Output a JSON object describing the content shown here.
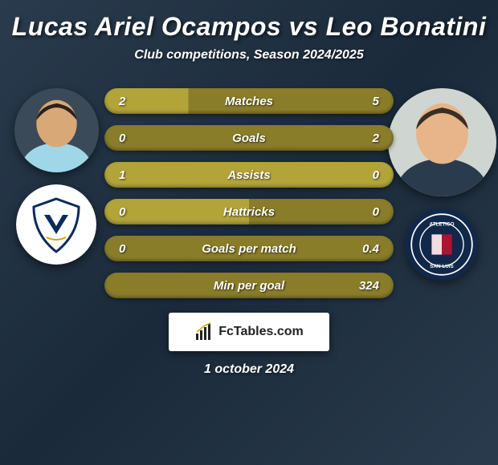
{
  "title": "Lucas Ariel Ocampos vs Leo Bonatini",
  "subtitle": "Club competitions, Season 2024/2025",
  "date": "1 october 2024",
  "brand": "FcTables.com",
  "players": {
    "left": {
      "name": "Lucas Ariel Ocampos",
      "photo_size": 105,
      "photo_bg": "#3a4a58",
      "skin": "#d9a877",
      "hair": "#2b2218",
      "shirt": "#9fd7e8"
    },
    "right": {
      "name": "Leo Bonatini",
      "photo_size": 135,
      "photo_bg": "#cfd6d2",
      "skin": "#e8b48a",
      "hair": "#3a2e22",
      "shirt": "#2a3b4d"
    }
  },
  "clubs": {
    "left": {
      "name": "Monterrey",
      "badge_size": 100,
      "bg": "#ffffff",
      "primary": "#0a2b5c",
      "accent": "#d6a400"
    },
    "right": {
      "name": "Atletico San Luis",
      "badge_size": 90,
      "bg": "#12284a",
      "primary": "#c8102e",
      "accent": "#ffffff"
    }
  },
  "bars": {
    "bar_colors": {
      "olive_light": "#b3a43a",
      "olive_dark": "#8a7d2a"
    },
    "rows": [
      {
        "label": "Matches",
        "left": "2",
        "right": "5",
        "left_pct": 29,
        "right_pct": 71
      },
      {
        "label": "Goals",
        "left": "0",
        "right": "2",
        "left_pct": 0,
        "right_pct": 100
      },
      {
        "label": "Assists",
        "left": "1",
        "right": "0",
        "left_pct": 100,
        "right_pct": 0
      },
      {
        "label": "Hattricks",
        "left": "0",
        "right": "0",
        "left_pct": 50,
        "right_pct": 50
      },
      {
        "label": "Goals per match",
        "left": "0",
        "right": "0.4",
        "left_pct": 0,
        "right_pct": 100
      },
      {
        "label": "Min per goal",
        "left": "",
        "right": "324",
        "left_pct": 0,
        "right_pct": 100
      }
    ]
  }
}
